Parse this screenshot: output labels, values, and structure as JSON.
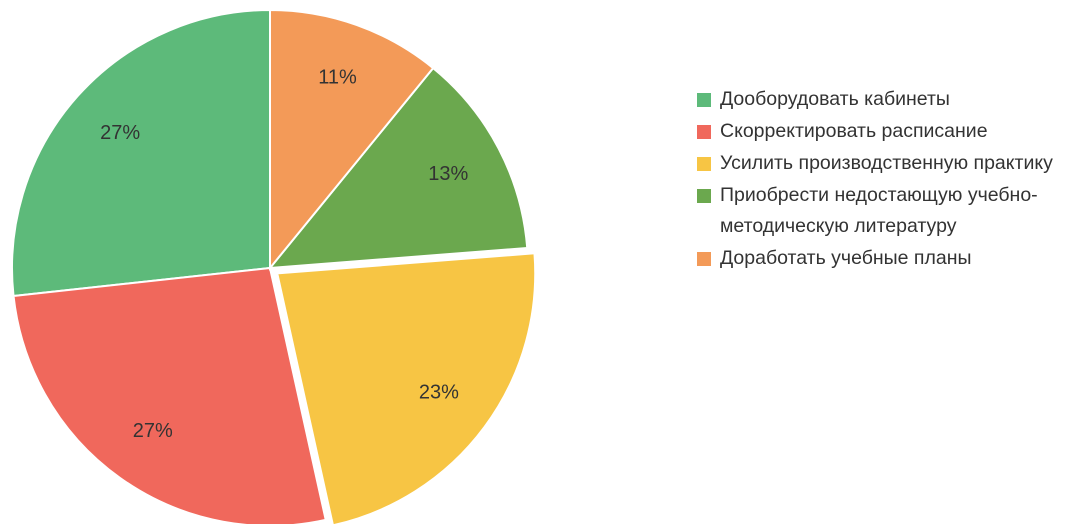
{
  "chart_data": {
    "type": "pie",
    "categories": [
      "Дооборудовать кабинеты",
      "Скорректировать расписание",
      "Усилить производственную практику",
      "Приобрести недостающую учебно-методическую литературу",
      "Доработать учебные планы"
    ],
    "values": [
      27,
      27,
      23,
      13,
      11
    ],
    "value_labels": [
      "27%",
      "27%",
      "23%",
      "13%",
      "11%"
    ],
    "colors": [
      "#5dba7a",
      "#f0685c",
      "#f7c544",
      "#6ba84e",
      "#f39a58"
    ],
    "exploded": [
      false,
      false,
      true,
      false,
      false
    ],
    "legend": "right"
  }
}
